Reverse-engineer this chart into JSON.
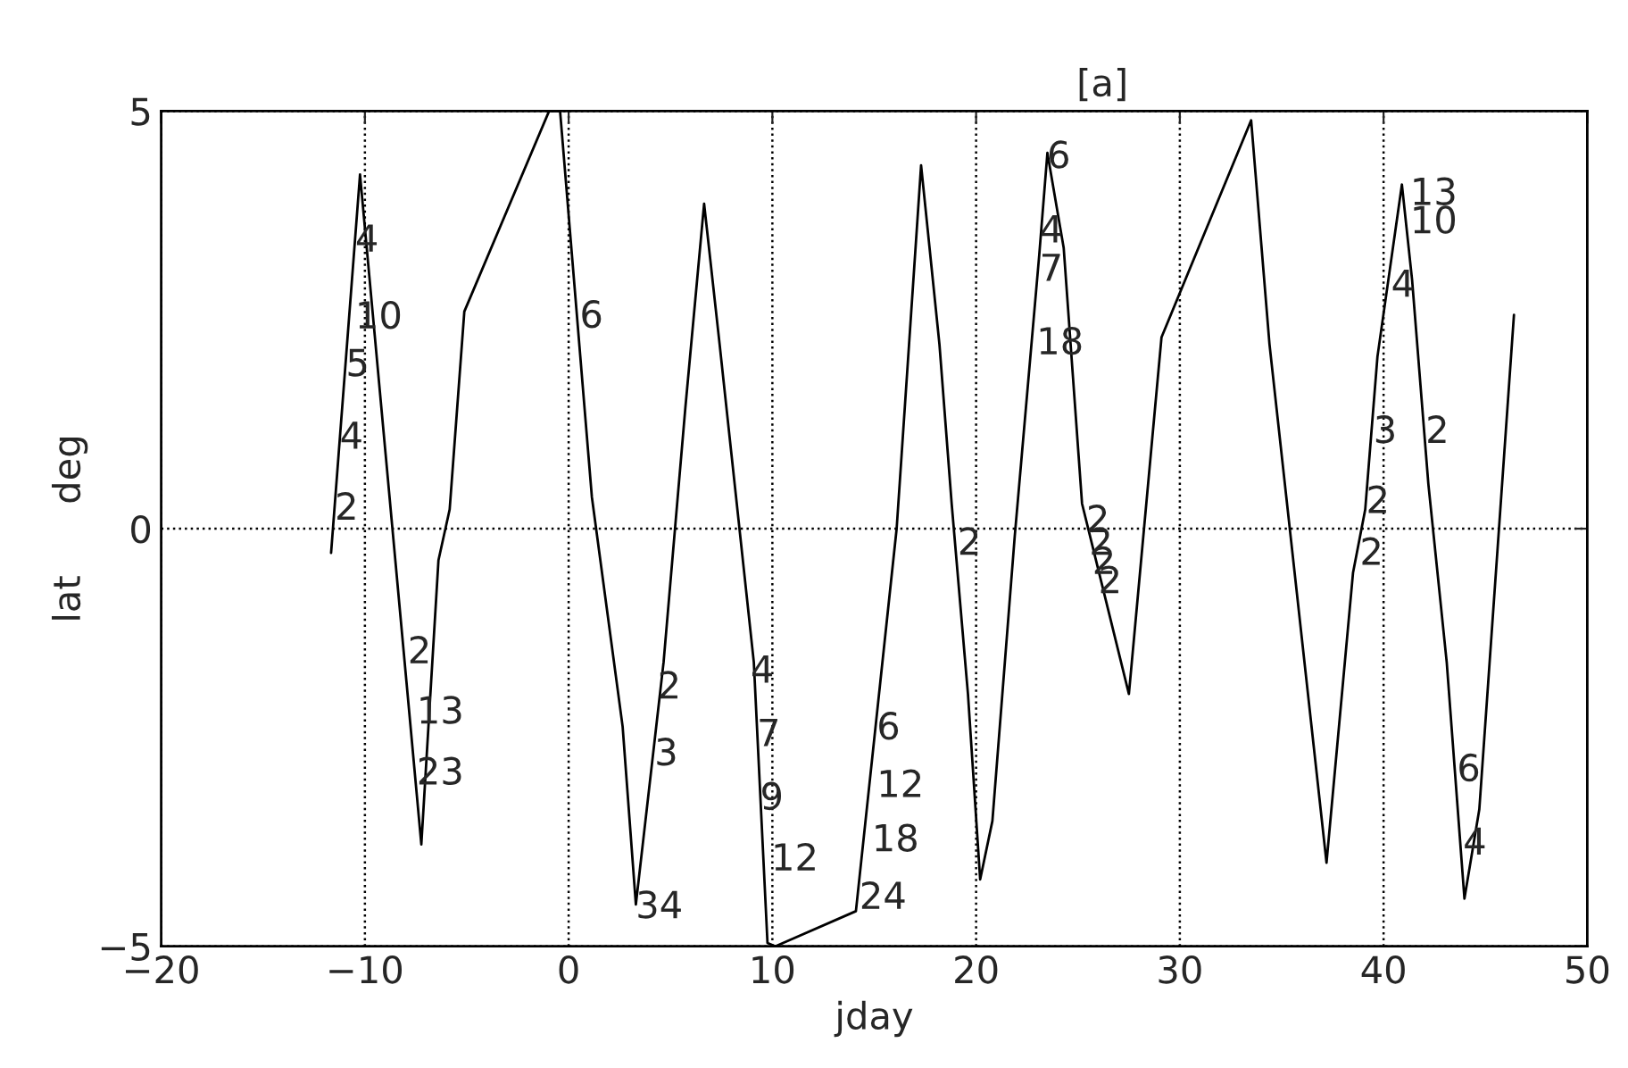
{
  "chart_data": {
    "type": "line",
    "title": "[a]",
    "xlabel": "jday",
    "ylabel": "lat      deg",
    "x": [
      -11.66,
      -10.24,
      -7.23,
      -6.39,
      -5.84,
      -5.12,
      -0.96,
      -0.42,
      1.14,
      2.65,
      3.3,
      4.66,
      5.73,
      6.65,
      7.41,
      9.09,
      9.76,
      10.15,
      14.1,
      16.1,
      17.3,
      18.2,
      18.8,
      19.6,
      20.2,
      20.8,
      21.9,
      23.1,
      23.5,
      24.3,
      25.2,
      26.2,
      27.5,
      29.1,
      33.5,
      34.4,
      37.2,
      38.5,
      39.1,
      39.7,
      40.9,
      41.4,
      42.2,
      43.1,
      43.97,
      44.7,
      46.4
    ],
    "series": [
      {
        "color": "#000000",
        "values": [
          -0.29,
          4.24,
          -3.78,
          -0.38,
          0.23,
          2.6,
          5.0,
          5.0,
          0.38,
          -2.37,
          -4.5,
          -1.6,
          1.45,
          3.89,
          2.21,
          -1.6,
          -4.96,
          -5.0,
          -4.58,
          0.0,
          4.35,
          2.21,
          0.3,
          -1.98,
          -4.2,
          -3.5,
          -0.08,
          3.28,
          4.5,
          3.36,
          0.3,
          -0.69,
          -1.98,
          2.29,
          4.89,
          2.21,
          -4.0,
          -0.53,
          0.23,
          2.06,
          4.12,
          2.98,
          0.53,
          -1.6,
          -4.43,
          -3.36,
          2.56
        ]
      }
    ],
    "xlim": [
      -20,
      50
    ],
    "ylim": [
      -5,
      5
    ],
    "xticks": [
      {
        "value": -20,
        "label": "−20"
      },
      {
        "value": -10,
        "label": "−10"
      },
      0,
      10,
      20,
      30,
      40,
      50
    ],
    "yticks": [
      {
        "value": -5,
        "label": "−5"
      },
      0,
      5
    ],
    "grid": true,
    "marker": "none",
    "line_style": "solid",
    "annotations": [
      {
        "text": "4",
        "x": -10.48,
        "y": 3.44
      },
      {
        "text": "10",
        "x": -10.48,
        "y": 2.52
      },
      {
        "text": "5",
        "x": -10.94,
        "y": 1.95
      },
      {
        "text": "4",
        "x": -11.24,
        "y": 1.08
      },
      {
        "text": "2",
        "x": -11.48,
        "y": 0.23
      },
      {
        "text": "2",
        "x": -7.9,
        "y": -1.49
      },
      {
        "text": "13",
        "x": -7.46,
        "y": -2.21
      },
      {
        "text": "23",
        "x": -7.46,
        "y": -2.94
      },
      {
        "text": "6",
        "x": 0.54,
        "y": 2.53
      },
      {
        "text": "2",
        "x": 4.36,
        "y": -1.91
      },
      {
        "text": "3",
        "x": 4.21,
        "y": -2.71
      },
      {
        "text": "34",
        "x": 3.29,
        "y": -4.54
      },
      {
        "text": "4",
        "x": 8.93,
        "y": -1.72
      },
      {
        "text": "7",
        "x": 9.24,
        "y": -2.48
      },
      {
        "text": "9",
        "x": 9.39,
        "y": -3.24
      },
      {
        "text": "12",
        "x": 9.94,
        "y": -3.97
      },
      {
        "text": "6",
        "x": 15.12,
        "y": -2.4
      },
      {
        "text": "12",
        "x": 15.12,
        "y": -3.09
      },
      {
        "text": "18",
        "x": 14.88,
        "y": -3.74
      },
      {
        "text": "24",
        "x": 14.27,
        "y": -4.43
      },
      {
        "text": "2",
        "x": 19.09,
        "y": -0.19
      },
      {
        "text": "6",
        "x": 23.48,
        "y": 4.44
      },
      {
        "text": "4",
        "x": 23.11,
        "y": 3.55
      },
      {
        "text": "7",
        "x": 23.11,
        "y": 3.09
      },
      {
        "text": "18",
        "x": 22.96,
        "y": 2.21
      },
      {
        "text": "2",
        "x": 25.4,
        "y": 0.08
      },
      {
        "text": "2",
        "x": 25.55,
        "y": -0.19
      },
      {
        "text": "2",
        "x": 25.7,
        "y": -0.42
      },
      {
        "text": "2",
        "x": 26.0,
        "y": -0.65
      },
      {
        "text": "13",
        "x": 41.3,
        "y": 4.0
      },
      {
        "text": "10",
        "x": 41.3,
        "y": 3.66
      },
      {
        "text": "4",
        "x": 40.37,
        "y": 2.9
      },
      {
        "text": "3",
        "x": 39.5,
        "y": 1.15
      },
      {
        "text": "2",
        "x": 42.06,
        "y": 1.15
      },
      {
        "text": "2",
        "x": 39.14,
        "y": 0.31
      },
      {
        "text": "2",
        "x": 38.83,
        "y": -0.31
      },
      {
        "text": "6",
        "x": 43.6,
        "y": -2.9
      },
      {
        "text": "4",
        "x": 43.9,
        "y": -3.78
      }
    ]
  }
}
